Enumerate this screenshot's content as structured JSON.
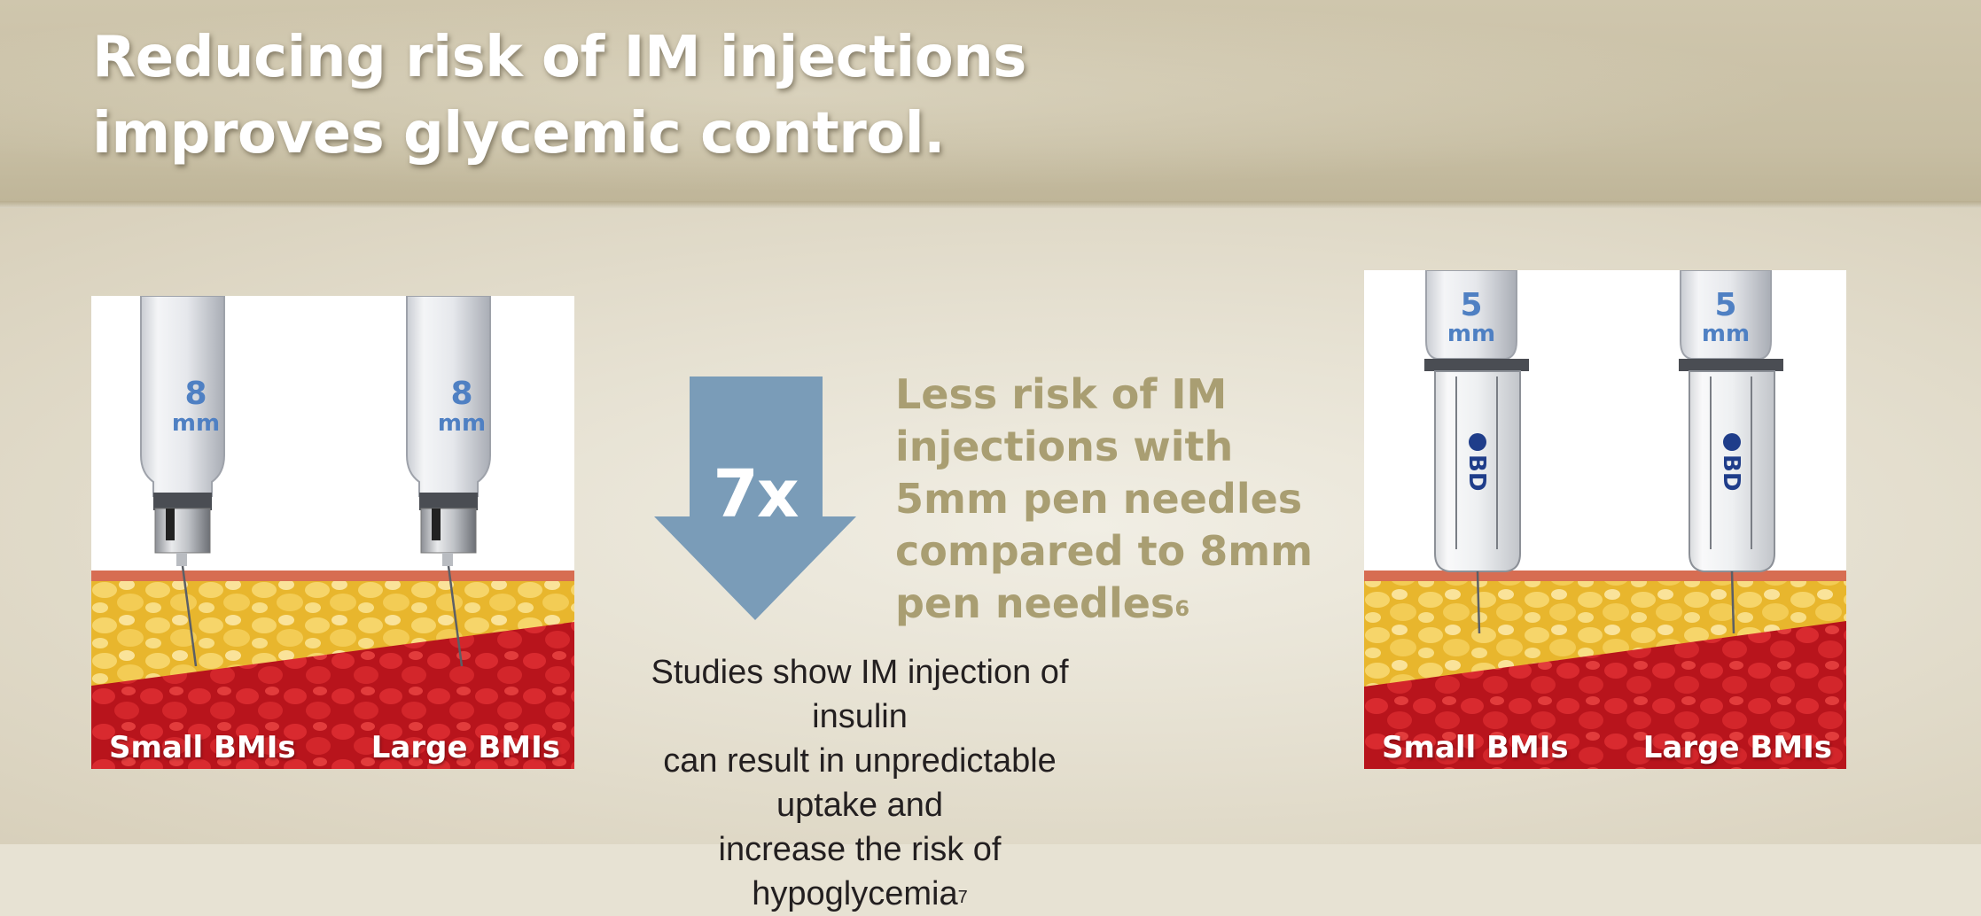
{
  "headline": {
    "line1": "Reducing risk of IM injections",
    "line2": "improves glycemic control."
  },
  "left_panel": {
    "needle_length": "8",
    "unit": "mm",
    "label_small": "Small BMIs",
    "label_large": "Large BMIs"
  },
  "arrow": {
    "text": "7x",
    "color": "#7a9cb8"
  },
  "risk_text": {
    "lines": [
      "Less risk of IM",
      "injections with",
      "5mm pen needles",
      "compared to 8mm",
      "pen needles"
    ],
    "footnote": "6",
    "color": "#a99e72"
  },
  "studies_text": {
    "lines": [
      "Studies show IM injection of insulin",
      "can result in unpredictable uptake and",
      "increase the risk of hypoglycemia"
    ],
    "footnote": "7"
  },
  "right_panel": {
    "needle_length": "5",
    "unit": "mm",
    "brand": "BD",
    "label_small": "Small BMIs",
    "label_large": "Large BMIs"
  }
}
